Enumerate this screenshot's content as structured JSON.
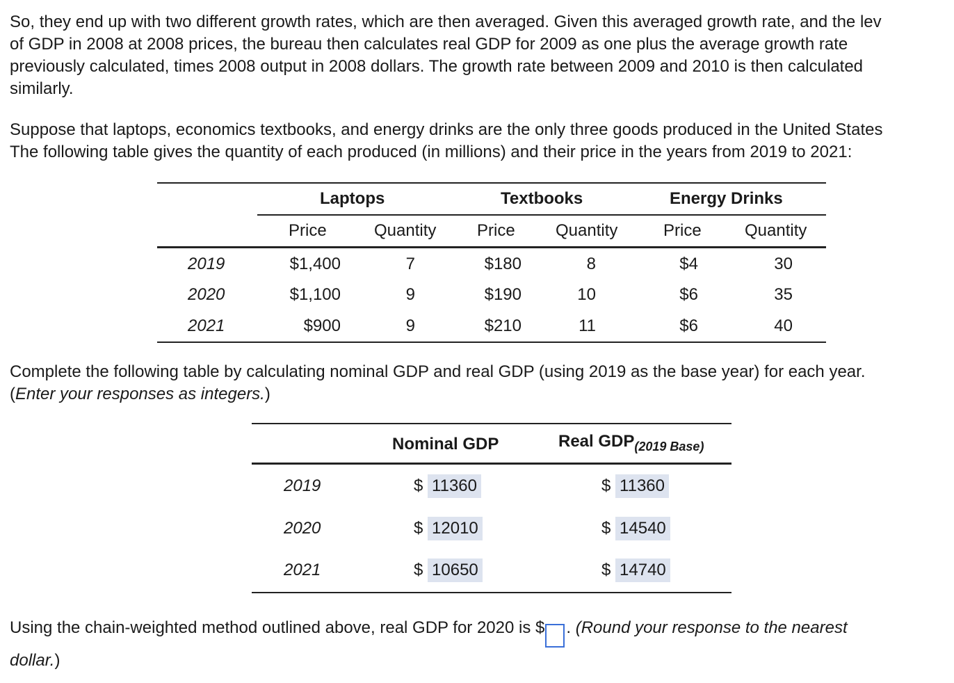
{
  "intro": {
    "lines": [
      "So, they end up with two different growth rates, which are then averaged. Given this averaged growth rate, and the lev",
      "of GDP in 2008 at 2008 prices, the bureau then calculates real GDP for 2009 as one plus the average growth rate",
      "previously calculated, times 2008 output in 2008 dollars. The growth rate between 2009 and 2010 is then calculated",
      "similarly."
    ]
  },
  "setup": {
    "lines": [
      "Suppose that laptops, economics textbooks, and energy drinks are the only three goods produced in the United States",
      "The following table gives the quantity of each produced (in millions) and their price in the years from 2019 to 2021:"
    ]
  },
  "goods_table": {
    "groups": [
      "Laptops",
      "Textbooks",
      "Energy Drinks"
    ],
    "subheaders": [
      "Price",
      "Quantity",
      "Price",
      "Quantity",
      "Price",
      "Quantity"
    ],
    "rows": [
      {
        "year": "2019",
        "values": [
          "$1,400",
          "7",
          "$180",
          "8",
          "$4",
          "30"
        ]
      },
      {
        "year": "2020",
        "values": [
          "$1,100",
          "9",
          "$190",
          "10",
          "$6",
          "35"
        ]
      },
      {
        "year": "2021",
        "values": [
          "$900",
          "9",
          "$210",
          "11",
          "$6",
          "40"
        ]
      }
    ]
  },
  "instruction": {
    "line1": "Complete the following table by calculating nominal GDP and real GDP (using 2019 as the base year) for each year.",
    "line2_open": "(",
    "line2_italic": "Enter your responses as integers.",
    "line2_close": ")"
  },
  "gdp_table": {
    "nominal_header": "Nominal GDP",
    "real_header_main": "Real GDP",
    "real_header_sub": "(2019 Base)",
    "rows": [
      {
        "year": "2019",
        "nominal_prefix": "$",
        "nominal": "11360",
        "real_prefix": "$",
        "real": "11360"
      },
      {
        "year": "2020",
        "nominal_prefix": "$",
        "nominal": "12010",
        "real_prefix": "$",
        "real": "14540"
      },
      {
        "year": "2021",
        "nominal_prefix": "$",
        "nominal": "10650",
        "real_prefix": "$",
        "real": "14740"
      }
    ]
  },
  "question": {
    "text_before": "Using the chain-weighted method outlined above, real GDP for 2020 is $",
    "input_value": "",
    "text_after_plain": ". ",
    "text_after_italic": "(Round your response to the nearest",
    "line2_italic": "dollar.",
    "line2_close": ")"
  }
}
